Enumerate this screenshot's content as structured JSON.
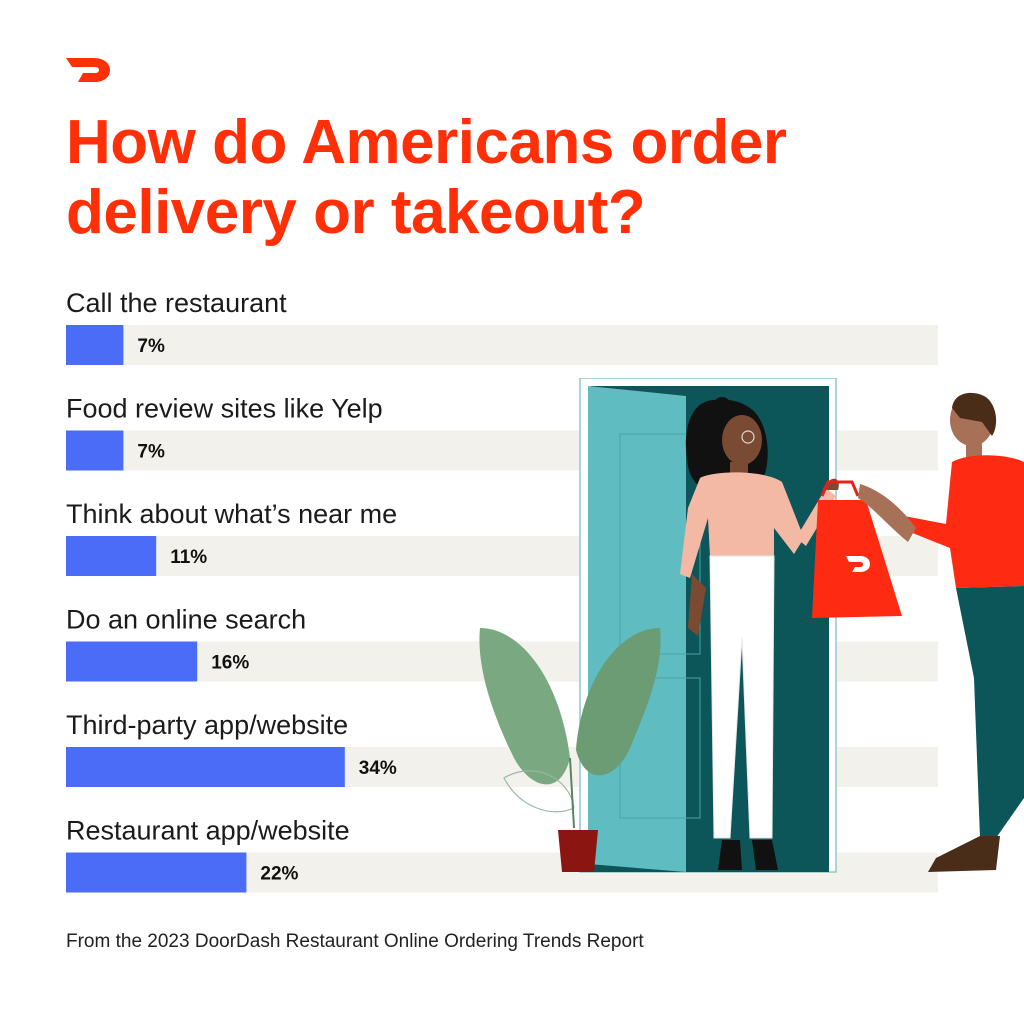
{
  "colors": {
    "brand": "#ff3008",
    "bar": "#4a6cf7",
    "track": "#f2f1ec"
  },
  "logo_icon": "doordash-dash-icon",
  "title_line1": "How do Americans order",
  "title_line2": "delivery or takeout?",
  "chart_data": {
    "type": "bar",
    "orientation": "horizontal",
    "title": "How do Americans order delivery or takeout?",
    "categories": [
      "Call the restaurant",
      "Food review sites like Yelp",
      "Think about what’s near me",
      "Do an online search",
      "Third-party app/website",
      "Restaurant app/website"
    ],
    "values": [
      7,
      7,
      11,
      16,
      34,
      22
    ],
    "value_labels": [
      "7%",
      "7%",
      "11%",
      "16%",
      "34%",
      "22%"
    ],
    "unit": "%",
    "xlim": [
      0,
      100
    ],
    "grid": false,
    "legend": "none"
  },
  "source": "From the 2023 DoorDash Restaurant Online Ordering Trends Report",
  "illustration": {
    "description_icon": "delivery-handoff-illustration",
    "bag_logo_icon": "doordash-dash-icon"
  }
}
